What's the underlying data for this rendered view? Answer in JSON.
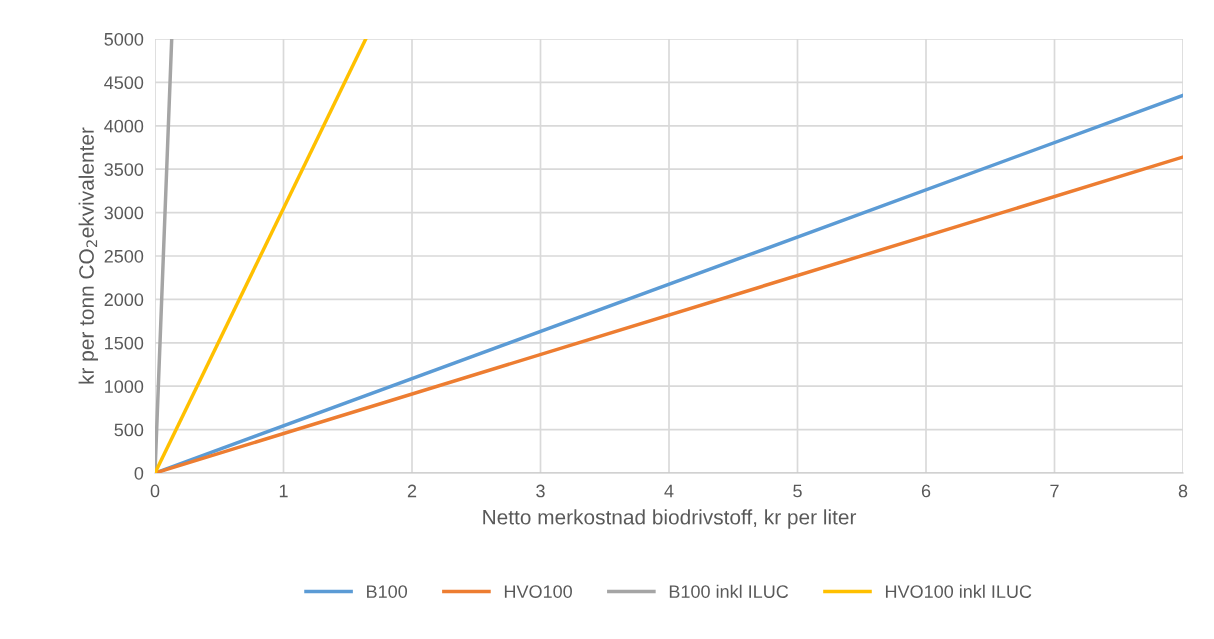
{
  "chart_data": {
    "type": "line",
    "xlabel": "Netto merkostnad biodrivstoff, kr per liter",
    "ylabel": "kr per tonn CO$_{2}$ekvivalenter",
    "series": [
      {
        "name": "B100",
        "color": "#5b9bd5",
        "x": [
          0,
          8
        ],
        "values": [
          0,
          4350
        ]
      },
      {
        "name": "HVO100",
        "color": "#ed7d31",
        "x": [
          0,
          8
        ],
        "values": [
          0,
          3640
        ]
      },
      {
        "name": "B100 inkl ILUC",
        "color": "#a5a5a5",
        "x": [
          0,
          0.13
        ],
        "values": [
          0,
          5000
        ]
      },
      {
        "name": "HVO100 inkl ILUC",
        "color": "#ffc000",
        "x": [
          0,
          1.64
        ],
        "values": [
          0,
          5000
        ]
      }
    ],
    "xlim": [
      0,
      8
    ],
    "xticks": [
      0,
      1,
      2,
      3,
      4,
      5,
      6,
      7,
      8
    ],
    "ylim": [
      0,
      5000
    ],
    "yticks": [
      0,
      500,
      1000,
      1500,
      2000,
      2500,
      3000,
      3500,
      4000,
      4500,
      5000
    ],
    "grid": true,
    "legend": "bottom",
    "marker": "none",
    "line_style": "solid"
  }
}
